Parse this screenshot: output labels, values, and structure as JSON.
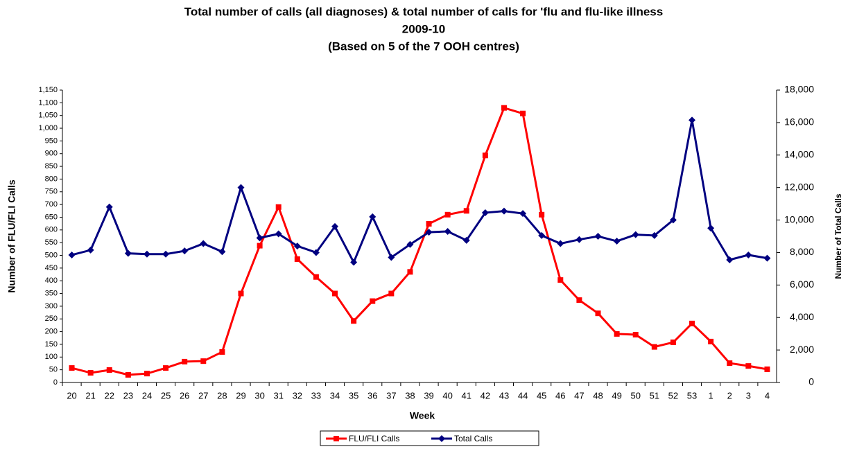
{
  "chart_data": {
    "type": "line",
    "title": [
      "Total number of calls (all diagnoses) & total number of calls for 'flu and flu-like illness",
      "2009-10",
      "(Based on 5 of the 7 OOH centres)"
    ],
    "x_label": "Week",
    "y_label": "Number of FLU/FLI Calls",
    "y2_label": "Number of Total Calls",
    "categories": [
      "20",
      "21",
      "22",
      "23",
      "24",
      "25",
      "26",
      "27",
      "28",
      "29",
      "30",
      "31",
      "32",
      "33",
      "34",
      "35",
      "36",
      "37",
      "38",
      "39",
      "40",
      "41",
      "42",
      "43",
      "44",
      "45",
      "46",
      "47",
      "48",
      "49",
      "50",
      "51",
      "52",
      "53",
      "1",
      "2",
      "3",
      "4"
    ],
    "series": [
      {
        "name": "FLU/FLI Calls",
        "color": "#ff0000",
        "marker": "square",
        "values": [
          57,
          38,
          49,
          30,
          35,
          57,
          82,
          84,
          120,
          350,
          538,
          690,
          485,
          415,
          350,
          242,
          320,
          350,
          435,
          624,
          660,
          675,
          893,
          1080,
          1058,
          660,
          403,
          324,
          272,
          191,
          188,
          140,
          158,
          232,
          161,
          76,
          65,
          52
        ]
      },
      {
        "name": "Total Calls",
        "color": "#000080",
        "marker": "diamond",
        "axis": "y2",
        "values": [
          7850,
          8150,
          10800,
          7950,
          7900,
          7900,
          8100,
          8550,
          8050,
          12000,
          8900,
          9150,
          8400,
          8000,
          9600,
          7400,
          10200,
          7700,
          8500,
          9250,
          9300,
          8750,
          10450,
          10550,
          10400,
          9050,
          8550,
          8800,
          9000,
          8700,
          9100,
          9050,
          10000,
          16150,
          9500,
          7550,
          7850,
          7650
        ]
      }
    ],
    "ylim": [
      0,
      1150
    ],
    "yticks": [
      0,
      50,
      100,
      150,
      200,
      250,
      300,
      350,
      400,
      450,
      500,
      550,
      600,
      650,
      700,
      750,
      800,
      850,
      900,
      950,
      {
        "value": 1000,
        "label": "1,000"
      },
      {
        "value": 1050,
        "label": "1,050"
      },
      {
        "value": 1100,
        "label": "1,100"
      },
      {
        "value": 1150,
        "label": "1,150"
      }
    ],
    "y2lim": [
      0,
      18000
    ],
    "y2ticks": [
      0,
      {
        "value": 2000,
        "label": "2,000"
      },
      {
        "value": 4000,
        "label": "4,000"
      },
      {
        "value": 6000,
        "label": "6,000"
      },
      {
        "value": 8000,
        "label": "8,000"
      },
      {
        "value": 10000,
        "label": "10,000"
      },
      {
        "value": 12000,
        "label": "12,000"
      },
      {
        "value": 14000,
        "label": "14,000"
      },
      {
        "value": 16000,
        "label": "16,000"
      },
      {
        "value": 18000,
        "label": "18,000"
      }
    ],
    "grid": false,
    "legend": "bottom"
  }
}
